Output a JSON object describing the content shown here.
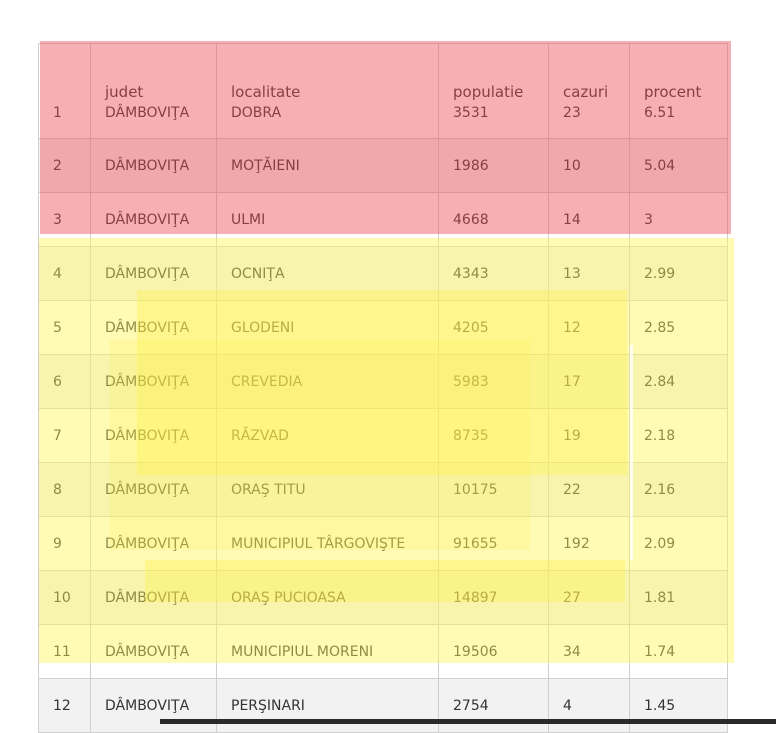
{
  "columns": [
    "judet",
    "localitate",
    "populatie",
    "cazuri",
    "procent"
  ],
  "rows": [
    {
      "n": "1",
      "judet": "DÂMBOVIŢA",
      "localitate": "DOBRA",
      "populatie": "3531",
      "cazuri": "23",
      "procent": "6.51"
    },
    {
      "n": "2",
      "judet": "DÂMBOVIŢA",
      "localitate": "MOŢĂIENI",
      "populatie": "1986",
      "cazuri": "10",
      "procent": "5.04"
    },
    {
      "n": "3",
      "judet": "DÂMBOVIŢA",
      "localitate": "ULMI",
      "populatie": "4668",
      "cazuri": "14",
      "procent": "3"
    },
    {
      "n": "4",
      "judet": "DÂMBOVIŢA",
      "localitate": "OCNIŢA",
      "populatie": "4343",
      "cazuri": "13",
      "procent": "2.99"
    },
    {
      "n": "5",
      "judet": "DÂMBOVIŢA",
      "localitate": "GLODENI",
      "populatie": "4205",
      "cazuri": "12",
      "procent": "2.85"
    },
    {
      "n": "6",
      "judet": "DÂMBOVIŢA",
      "localitate": "CREVEDIA",
      "populatie": "5983",
      "cazuri": "17",
      "procent": "2.84"
    },
    {
      "n": "7",
      "judet": "DÂMBOVIŢA",
      "localitate": "RĂZVAD",
      "populatie": "8735",
      "cazuri": "19",
      "procent": "2.18"
    },
    {
      "n": "8",
      "judet": "DÂMBOVIŢA",
      "localitate": "ORAŞ TITU",
      "populatie": "10175",
      "cazuri": "22",
      "procent": "2.16"
    },
    {
      "n": "9",
      "judet": "DÂMBOVIŢA",
      "localitate": "MUNICIPIUL TÂRGOVIŞTE",
      "populatie": "91655",
      "cazuri": "192",
      "procent": "2.09"
    },
    {
      "n": "10",
      "judet": "DÂMBOVIŢA",
      "localitate": "ORAŞ PUCIOASA",
      "populatie": "14897",
      "cazuri": "27",
      "procent": "1.81"
    },
    {
      "n": "11",
      "judet": "DÂMBOVIŢA",
      "localitate": "MUNICIPIUL MORENI",
      "populatie": "19506",
      "cazuri": "34",
      "procent": "1.74"
    },
    {
      "n": "12",
      "judet": "DÂMBOVIŢA",
      "localitate": "PERŞINARI",
      "populatie": "2754",
      "cazuri": "4",
      "procent": "1.45"
    }
  ],
  "highlight_colors": {
    "red": "#ec4e5c",
    "yellow": "#fff65a"
  }
}
